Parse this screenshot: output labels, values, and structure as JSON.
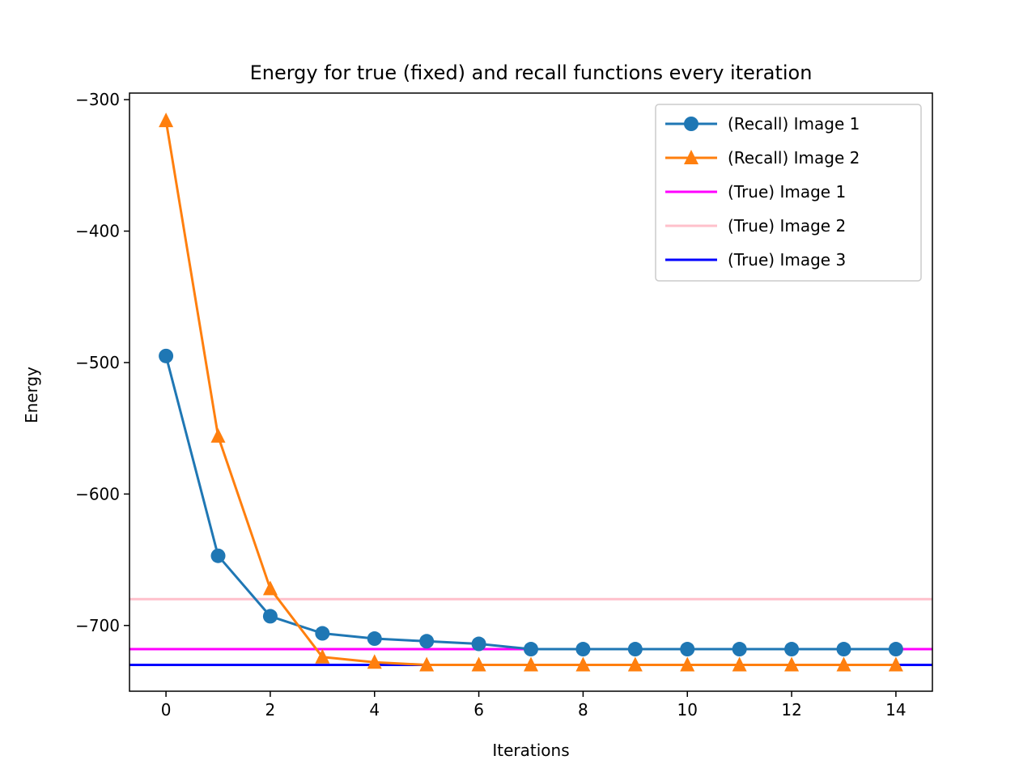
{
  "chart_data": {
    "type": "line",
    "title": "Energy for true (fixed) and recall functions every iteration",
    "xlabel": "Iterations",
    "ylabel": "Energy",
    "xlim": [
      -0.7,
      14.7
    ],
    "ylim": [
      -750,
      -295
    ],
    "xticks": [
      0,
      2,
      4,
      6,
      8,
      10,
      12,
      14
    ],
    "yticks": [
      -300,
      -400,
      -500,
      -600,
      -700
    ],
    "xtick_labels": [
      "0",
      "2",
      "4",
      "6",
      "8",
      "10",
      "12",
      "14"
    ],
    "ytick_labels": [
      "−300",
      "−400",
      "−500",
      "−600",
      "−700"
    ],
    "grid": false,
    "legend_position": "top-right",
    "x": [
      0,
      1,
      2,
      3,
      4,
      5,
      6,
      7,
      8,
      9,
      10,
      11,
      12,
      13,
      14
    ],
    "series": [
      {
        "name": "(Recall) Image 1",
        "color": "#1f77b4",
        "marker": "circle",
        "values": [
          -495,
          -647,
          -693,
          -706,
          -710,
          -712,
          -714,
          -718,
          -718,
          -718,
          -718,
          -718,
          -718,
          -718,
          -718
        ]
      },
      {
        "name": "(Recall) Image 2",
        "color": "#ff7f0e",
        "marker": "triangle",
        "values": [
          -316,
          -556,
          -672,
          -724,
          -728,
          -730,
          -730,
          -730,
          -730,
          -730,
          -730,
          -730,
          -730,
          -730,
          -730
        ]
      }
    ],
    "hlines": [
      {
        "name": "(True) Image 1",
        "color": "#ff00ff",
        "value": -718
      },
      {
        "name": "(True) Image 2",
        "color": "#ffc0cb",
        "value": -680
      },
      {
        "name": "(True) Image 3",
        "color": "#0000ff",
        "value": -730
      }
    ]
  }
}
